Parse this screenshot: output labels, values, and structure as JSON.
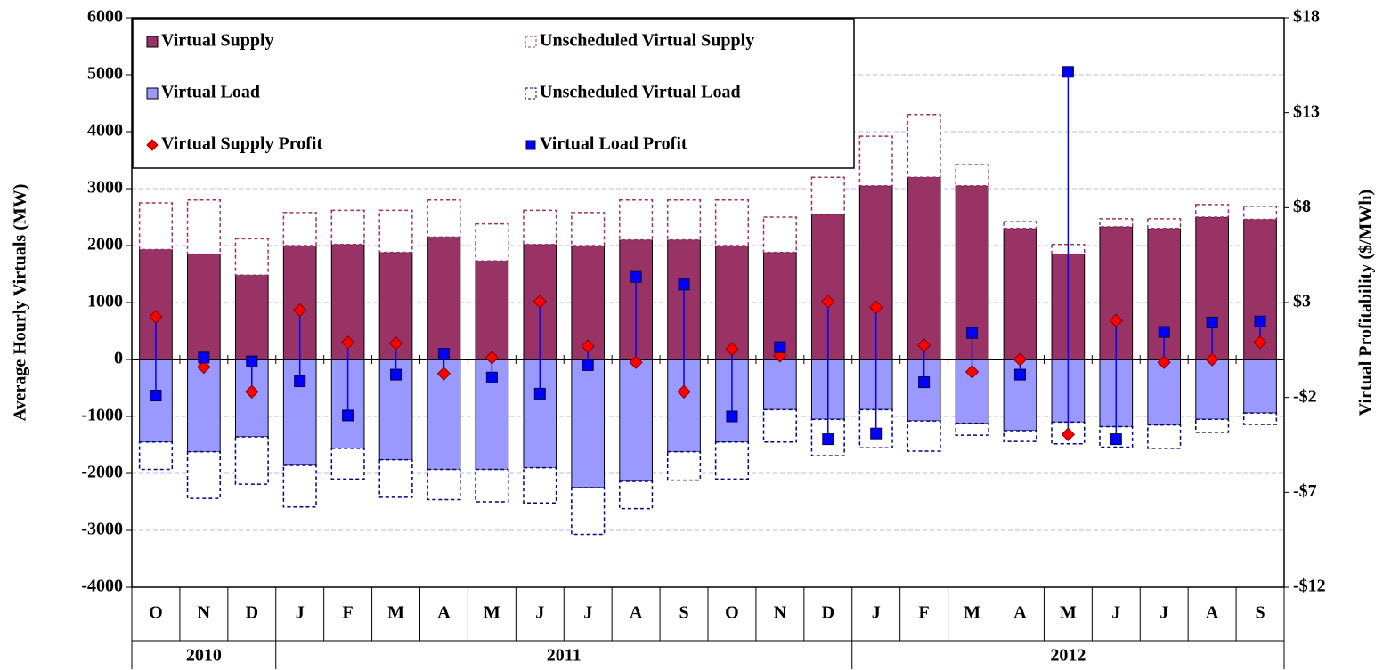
{
  "chart_data": {
    "type": "bar",
    "y_label": "Average Hourly Virtuals  (MW)",
    "y2_label": "Virtual Profitability   ($/MWh)",
    "groups": [
      {
        "label": "2010",
        "categories": [
          "O",
          "N",
          "D"
        ]
      },
      {
        "label": "2011",
        "categories": [
          "J",
          "F",
          "M",
          "A",
          "M",
          "J",
          "J",
          "A",
          "S",
          "O",
          "N",
          "D"
        ]
      },
      {
        "label": "2012",
        "categories": [
          "J",
          "F",
          "M",
          "A",
          "M",
          "J",
          "J",
          "A",
          "S"
        ]
      }
    ],
    "ylim": [
      -4000,
      6000
    ],
    "yticks": [
      -4000,
      -3000,
      -2000,
      -1000,
      0,
      1000,
      2000,
      3000,
      4000,
      5000,
      6000
    ],
    "y2lim": [
      -12,
      18
    ],
    "y2ticks": [
      {
        "value": -12,
        "label": "-$12"
      },
      {
        "value": -7,
        "label": "-$7"
      },
      {
        "value": -2,
        "label": "-$2"
      },
      {
        "value": 3,
        "label": "$3"
      },
      {
        "value": 8,
        "label": "$8"
      },
      {
        "value": 13,
        "label": "$13"
      },
      {
        "value": 18,
        "label": "$18"
      }
    ],
    "grid": true,
    "legend": "upper left",
    "series": [
      {
        "name": "Virtual Supply",
        "color": "#993366",
        "values": [
          1930,
          1850,
          1480,
          2000,
          2020,
          1880,
          2150,
          1730,
          2020,
          2000,
          2100,
          2100,
          2000,
          1880,
          2550,
          3050,
          3200,
          3050,
          2300,
          1850,
          2330,
          2300,
          2500,
          2460
        ]
      },
      {
        "name": "Unscheduled Virtual Supply",
        "color": "#993366",
        "dashed": true,
        "values": [
          820,
          950,
          640,
          580,
          600,
          740,
          650,
          650,
          600,
          580,
          700,
          700,
          800,
          620,
          650,
          870,
          1100,
          370,
          120,
          170,
          140,
          170,
          220,
          230
        ]
      },
      {
        "name": "Virtual Load",
        "color": "#9999ff",
        "values": [
          -1450,
          -1620,
          -1360,
          -1860,
          -1560,
          -1760,
          -1930,
          -1930,
          -1900,
          -2250,
          -2140,
          -1620,
          -1450,
          -880,
          -1050,
          -880,
          -1080,
          -1120,
          -1250,
          -1100,
          -1180,
          -1150,
          -1050,
          -940
        ]
      },
      {
        "name": "Unscheduled Virtual Load",
        "color": "#000080",
        "dashed": true,
        "values": [
          -480,
          -820,
          -830,
          -730,
          -540,
          -660,
          -530,
          -570,
          -620,
          -820,
          -480,
          -500,
          -650,
          -570,
          -640,
          -670,
          -530,
          -210,
          -190,
          -380,
          -360,
          -410,
          -230,
          -200
        ]
      },
      {
        "name": "Virtual Supply Profit",
        "color": "#ff0000",
        "axis": "y2",
        "marker": "diamond",
        "values": [
          2.25,
          -0.4,
          -1.7,
          2.6,
          0.9,
          0.85,
          -0.75,
          0.1,
          3.05,
          0.7,
          -0.15,
          -1.7,
          0.55,
          0.2,
          3.05,
          2.75,
          0.75,
          -0.65,
          0,
          -3.95,
          2.05,
          -0.15,
          0,
          0.9
        ]
      },
      {
        "name": "Virtual Load Profit",
        "color": "#0000ff",
        "axis": "y2",
        "marker": "square",
        "values": [
          -1.9,
          0.1,
          -0.1,
          -1.15,
          -2.95,
          -0.8,
          0.3,
          -0.95,
          -1.8,
          -0.3,
          4.35,
          3.95,
          -3.0,
          0.65,
          -4.2,
          -3.9,
          -1.2,
          1.4,
          -0.8,
          15.15,
          -4.2,
          1.45,
          1.95,
          2.0
        ]
      }
    ],
    "connector_color": "#0000ff"
  }
}
